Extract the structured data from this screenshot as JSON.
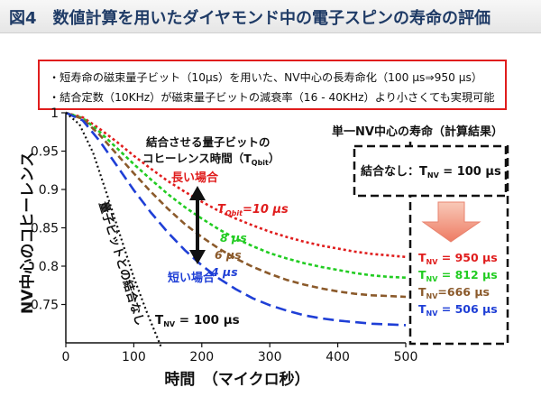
{
  "title": "図4　数値計算を用いたダイヤモンド中の電子スピンの寿命の評価",
  "summary": [
    "・短寿命の磁束量子ビット（10μs）を用いた、NV中心の長寿命化（100 μs⇒950 μs）",
    "・結合定数（10KHz）が磁束量子ビットの減衰率（16 - 40KHz）より小さくても実現可能"
  ],
  "chart_data": {
    "type": "line",
    "xlabel": "時間　（マイクロ秒）",
    "ylabel": "NV中心のコヒーレンス",
    "xlim": [
      0,
      500
    ],
    "ylim": [
      0.7,
      1.0
    ],
    "x_ticks": [
      "0",
      "100",
      "200",
      "300",
      "400",
      "500"
    ],
    "y_ticks": [
      "0.75",
      "0.8",
      "0.85",
      "0.9",
      "0.95",
      "1"
    ],
    "grid": false,
    "series": [
      {
        "label": "T_Qbit=10 μs",
        "color": "#e01d1d",
        "T_NV": 950,
        "x": [
          0,
          25,
          50,
          75,
          100,
          125,
          150,
          175,
          200,
          225,
          250,
          275,
          300,
          325,
          350,
          375,
          400,
          425,
          450,
          475,
          500
        ],
        "y": [
          1.0,
          0.994,
          0.979,
          0.962,
          0.944,
          0.927,
          0.911,
          0.897,
          0.884,
          0.872,
          0.862,
          0.853,
          0.845,
          0.838,
          0.832,
          0.827,
          0.823,
          0.819,
          0.816,
          0.814,
          0.812
        ]
      },
      {
        "label": "8 μs",
        "color": "#22cc22",
        "T_NV": 812,
        "x": [
          0,
          25,
          50,
          75,
          100,
          125,
          150,
          175,
          200,
          225,
          250,
          275,
          300,
          325,
          350,
          375,
          400,
          425,
          450,
          475,
          500
        ],
        "y": [
          1.0,
          0.993,
          0.975,
          0.954,
          0.933,
          0.913,
          0.894,
          0.877,
          0.862,
          0.848,
          0.836,
          0.826,
          0.817,
          0.81,
          0.804,
          0.799,
          0.795,
          0.791,
          0.788,
          0.786,
          0.785
        ]
      },
      {
        "label": "6 μs",
        "color": "#8b5a2b",
        "T_NV": 666,
        "x": [
          0,
          25,
          50,
          75,
          100,
          125,
          150,
          175,
          200,
          225,
          250,
          275,
          300,
          325,
          350,
          375,
          400,
          425,
          450,
          475,
          500
        ],
        "y": [
          1.0,
          0.992,
          0.971,
          0.946,
          0.921,
          0.897,
          0.875,
          0.855,
          0.838,
          0.823,
          0.81,
          0.799,
          0.79,
          0.782,
          0.776,
          0.771,
          0.767,
          0.764,
          0.762,
          0.761,
          0.76
        ]
      },
      {
        "label": "4 μs",
        "color": "#1f3fd6",
        "T_NV": 506,
        "x": [
          0,
          25,
          50,
          75,
          100,
          125,
          150,
          175,
          200,
          225,
          250,
          275,
          300,
          325,
          350,
          375,
          400,
          425,
          450,
          475,
          500
        ],
        "y": [
          1.0,
          0.99,
          0.963,
          0.931,
          0.899,
          0.87,
          0.844,
          0.821,
          0.801,
          0.784,
          0.77,
          0.758,
          0.749,
          0.742,
          0.736,
          0.732,
          0.729,
          0.727,
          0.725,
          0.724,
          0.723
        ]
      },
      {
        "label": "結合なし",
        "color": "#111111",
        "T_NV": 100,
        "x": [
          0,
          20,
          40,
          60,
          80,
          100,
          120,
          140
        ],
        "y": [
          1.0,
          0.985,
          0.948,
          0.895,
          0.84,
          0.785,
          0.738,
          0.695
        ]
      }
    ],
    "annotations": {
      "coupled_qubit_label": "結合させる量子ビットの",
      "coherence_time_label": "コヒーレンス時間（T",
      "coherence_time_sub": "Qbit",
      "coherence_time_close": "）",
      "long_case": "長い場合",
      "short_case": "短い場合",
      "t_qbit_main": "T",
      "t_qbit_sub": "Qbit",
      "t_qbit_value": "=10 μs",
      "label_8": "8 μs",
      "label_6": "6 μs",
      "label_4": "4 μs",
      "uncoupled_rotated": "量子ビットとの結合なし",
      "tnv_base_main": "T",
      "tnv_base_sub": "NV",
      "tnv_base_value": " = 100 μs"
    },
    "side_panel": {
      "heading": "単一NV中心の寿命（計算結果）",
      "no_coupling_prefix": "結合なし：T",
      "no_coupling_sub": "NV",
      "no_coupling_value": " = 100 μs",
      "results": [
        {
          "main": "T",
          "sub": "NV",
          "value": " = 950 μs",
          "color": "#e01d1d"
        },
        {
          "main": "T",
          "sub": "NV",
          "value": " = 812 μs",
          "color": "#22cc22"
        },
        {
          "main": "T",
          "sub": "NV",
          "value": "=666 μs",
          "color": "#8b5a2b"
        },
        {
          "main": "T",
          "sub": "NV",
          "value": " = 506 μs",
          "color": "#1f3fd6"
        }
      ]
    }
  }
}
